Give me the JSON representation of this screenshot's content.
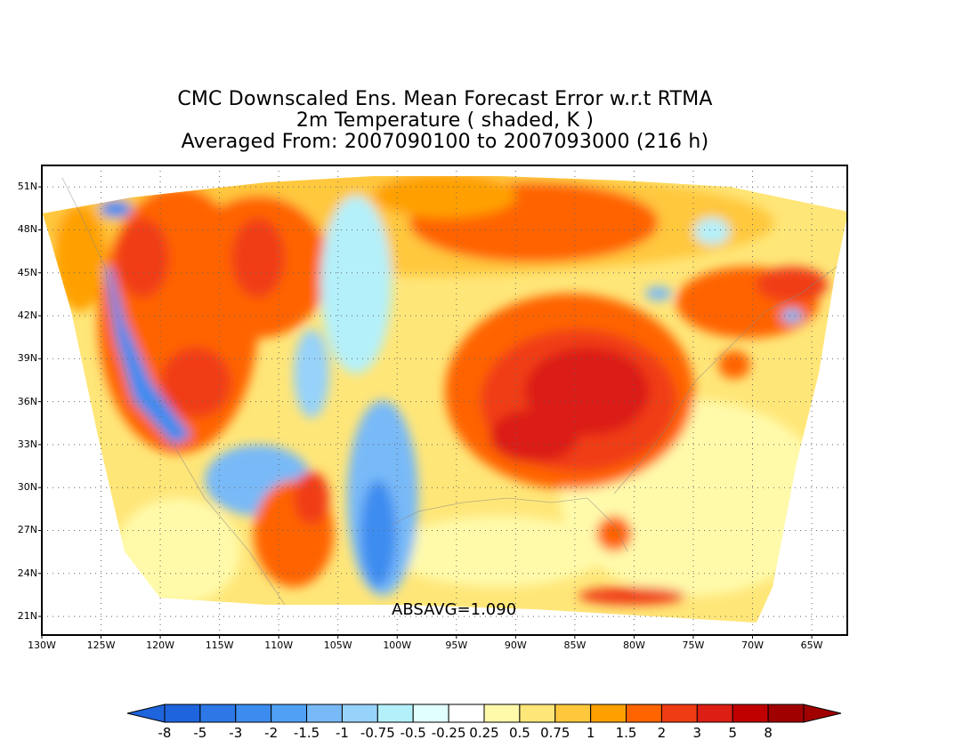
{
  "title": {
    "line1": "CMC Downscaled Ens. Mean Forecast Error w.r.t RTMA",
    "line2": "2m Temperature ( shaded, K )",
    "line3": "Averaged From: 2007090100 to 2007093000 (216 h)"
  },
  "map": {
    "projection": "lat-lon",
    "lon_range": [
      -130,
      -62
    ],
    "lat_range": [
      19.7,
      52.5
    ],
    "grid": "dotted",
    "lat_ticks": [
      "51N",
      "48N",
      "45N",
      "42N",
      "39N",
      "36N",
      "33N",
      "30N",
      "27N",
      "24N",
      "21N"
    ],
    "lat_tick_values": [
      51,
      48,
      45,
      42,
      39,
      36,
      33,
      30,
      27,
      24,
      21
    ],
    "lon_ticks": [
      "130W",
      "125W",
      "120W",
      "115W",
      "110W",
      "105W",
      "100W",
      "95W",
      "90W",
      "85W",
      "80W",
      "75W",
      "70W",
      "65W"
    ],
    "lon_tick_values": [
      -130,
      -125,
      -120,
      -115,
      -110,
      -105,
      -100,
      -95,
      -90,
      -85,
      -80,
      -75,
      -70,
      -65
    ],
    "annotation": "ABSAVG=1.090",
    "shading_regions": [
      {
        "name": "western-us-warm",
        "level": "2"
      },
      {
        "name": "pacific-coast-cool",
        "level": "-2"
      },
      {
        "name": "southwest-cool",
        "level": "-1.5"
      },
      {
        "name": "plains-cool",
        "level": "-1"
      },
      {
        "name": "southeast-us-warm",
        "level": "3"
      },
      {
        "name": "northeast-warm",
        "level": "1.5"
      },
      {
        "name": "ocean-gulf-slight-warm",
        "level": "0.5"
      }
    ]
  },
  "colorbar": {
    "labels": [
      "-8",
      "-5",
      "-3",
      "-2",
      "-1.5",
      "-1",
      "-0.75",
      "-0.5",
      "-0.25",
      "0.25",
      "0.5",
      "0.75",
      "1",
      "1.5",
      "2",
      "3",
      "5",
      "8"
    ],
    "colors": [
      "#1e64dc",
      "#2d78e6",
      "#3c8cf0",
      "#50a0f5",
      "#78b9f8",
      "#96d2fa",
      "#b4f0fa",
      "#e1ffff",
      "#ffffff",
      "#fffaaa",
      "#ffe678",
      "#ffc83c",
      "#ffa000",
      "#ff6400",
      "#f03c14",
      "#dc1e14",
      "#c00000",
      "#a00000"
    ],
    "arrow_low_color": "#1e64dc",
    "arrow_high_color": "#a00000"
  }
}
